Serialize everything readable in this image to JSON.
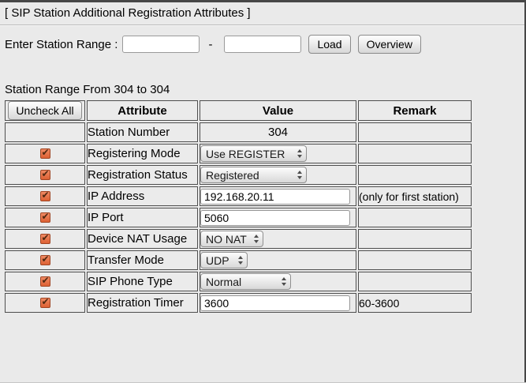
{
  "page": {
    "title": "[ SIP Station Additional Registration Attributes ]",
    "range_label": "Enter Station Range :",
    "range_separator": "-",
    "range_from": "",
    "range_to": "",
    "load_button": "Load",
    "overview_button": "Overview",
    "subtitle": "Station Range From 304 to 304"
  },
  "icons": {
    "check": "✔"
  },
  "colors": {
    "background": "#eaeaea",
    "cell_border": "#4e4e4e",
    "checkbox_fill": "#e06a3e",
    "checkbox_border": "#a04523",
    "checkbox_check": "#4f2810",
    "frame_edge": "#474747"
  },
  "table": {
    "uncheck_all_button": "Uncheck All",
    "headers": {
      "attribute": "Attribute",
      "value": "Value",
      "remark": "Remark"
    },
    "rows": [
      {
        "checked": false,
        "attribute": "Station Number",
        "control": "static",
        "value": "304",
        "remark": ""
      },
      {
        "checked": true,
        "attribute": "Registering Mode",
        "control": "select",
        "value": "Use REGISTER",
        "remark": ""
      },
      {
        "checked": true,
        "attribute": "Registration Status",
        "control": "select",
        "value": "Registered",
        "remark": ""
      },
      {
        "checked": true,
        "attribute": "IP Address",
        "control": "input",
        "value": "192.168.20.11",
        "remark": "(only for first station)"
      },
      {
        "checked": true,
        "attribute": "IP Port",
        "control": "input",
        "value": "5060",
        "remark": ""
      },
      {
        "checked": true,
        "attribute": "Device NAT Usage",
        "control": "select",
        "value": "NO NAT",
        "remark": ""
      },
      {
        "checked": true,
        "attribute": "Transfer Mode",
        "control": "select",
        "value": "UDP",
        "remark": ""
      },
      {
        "checked": true,
        "attribute": "SIP Phone Type",
        "control": "select",
        "value": "Normal",
        "remark": ""
      },
      {
        "checked": true,
        "attribute": "Registration Timer",
        "control": "input",
        "value": "3600",
        "remark": "60-3600"
      }
    ]
  }
}
